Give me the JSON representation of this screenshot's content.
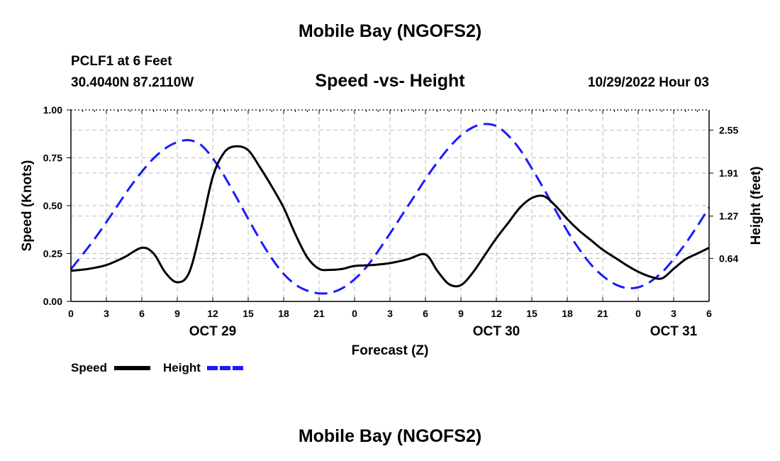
{
  "header": {
    "title": "Mobile Bay (NGOFS2)",
    "station": "PCLF1 at 6 Feet",
    "coordinates": "30.4040N  87.2110W",
    "chart_title": "Speed -vs- Height",
    "datetime": "10/29/2022 Hour 03"
  },
  "footer": {
    "title": "Mobile Bay (NGOFS2)"
  },
  "colors": {
    "speed": "#000000",
    "height": "#1a1aff",
    "grid": "#bdbdbd"
  },
  "chart_data": {
    "type": "line",
    "title": "Speed -vs- Height",
    "xlabel": "Forecast (Z)",
    "ylabel": "Speed (Knots)",
    "y2label": "Height (feet)",
    "xlim": [
      0,
      54
    ],
    "ylim": [
      0,
      1.0
    ],
    "y2lim": [
      0.0,
      2.85
    ],
    "x_ticks": [
      0,
      3,
      6,
      9,
      12,
      15,
      18,
      21,
      24,
      27,
      30,
      33,
      36,
      39,
      42,
      45,
      48,
      51,
      54
    ],
    "x_tick_labels": [
      "0",
      "3",
      "6",
      "9",
      "12",
      "15",
      "18",
      "21",
      "0",
      "3",
      "6",
      "9",
      "12",
      "15",
      "18",
      "21",
      "0",
      "3",
      "6"
    ],
    "date_labels": [
      {
        "x": 12,
        "label": "OCT 29"
      },
      {
        "x": 36,
        "label": "OCT 30"
      },
      {
        "x": 51,
        "label": "OCT 31"
      }
    ],
    "y_ticks": [
      0,
      0.25,
      0.5,
      0.75,
      1.0
    ],
    "y_tick_labels": [
      "0.00",
      "0.25",
      "0.50",
      "0.75",
      "1.00"
    ],
    "y2_ticks": [
      0.64,
      1.27,
      1.91,
      2.55
    ],
    "y2_tick_labels": [
      "0.64",
      "1.27",
      "1.91",
      "2.55"
    ],
    "series": [
      {
        "name": "Speed",
        "axis": "left",
        "style": "solid",
        "x": [
          0,
          1.5,
          3,
          4.5,
          6,
          7,
          8,
          9,
          10,
          11,
          12,
          13,
          14,
          15,
          16,
          17,
          18,
          19,
          20,
          21,
          22,
          23,
          24,
          25.5,
          27,
          28.5,
          30,
          31,
          32,
          33,
          34,
          35,
          36,
          37,
          38,
          39,
          40,
          41,
          42,
          43,
          44,
          45,
          46,
          47,
          48,
          49,
          50,
          51,
          52,
          53,
          54
        ],
        "values": [
          0.16,
          0.17,
          0.19,
          0.23,
          0.28,
          0.25,
          0.15,
          0.1,
          0.15,
          0.38,
          0.65,
          0.78,
          0.81,
          0.79,
          0.7,
          0.6,
          0.49,
          0.35,
          0.23,
          0.17,
          0.165,
          0.17,
          0.185,
          0.19,
          0.2,
          0.22,
          0.245,
          0.16,
          0.09,
          0.085,
          0.15,
          0.24,
          0.33,
          0.41,
          0.49,
          0.54,
          0.55,
          0.5,
          0.43,
          0.37,
          0.32,
          0.27,
          0.23,
          0.19,
          0.155,
          0.13,
          0.12,
          0.17,
          0.22,
          0.25,
          0.28
        ]
      },
      {
        "name": "Height",
        "axis": "right",
        "style": "dashed",
        "x": [
          0,
          1,
          2,
          3,
          4,
          5,
          6,
          7,
          8,
          9,
          10,
          11,
          12,
          13,
          14,
          15,
          16,
          17,
          18,
          19,
          20,
          21,
          22,
          23,
          24,
          25,
          26,
          27,
          28,
          29,
          30,
          31,
          32,
          33,
          34,
          35,
          36,
          37,
          38,
          39,
          40,
          41,
          42,
          43,
          44,
          45,
          46,
          47,
          48,
          49,
          50,
          51,
          52,
          53,
          54
        ],
        "values": [
          0.48,
          0.7,
          0.93,
          1.18,
          1.44,
          1.7,
          1.93,
          2.13,
          2.28,
          2.37,
          2.4,
          2.33,
          2.13,
          1.86,
          1.55,
          1.23,
          0.92,
          0.64,
          0.41,
          0.25,
          0.16,
          0.12,
          0.13,
          0.2,
          0.33,
          0.51,
          0.75,
          1.01,
          1.28,
          1.55,
          1.82,
          2.07,
          2.29,
          2.47,
          2.59,
          2.64,
          2.61,
          2.47,
          2.26,
          1.98,
          1.68,
          1.36,
          1.05,
          0.78,
          0.55,
          0.38,
          0.26,
          0.2,
          0.21,
          0.29,
          0.43,
          0.63,
          0.86,
          1.12,
          1.4
        ]
      }
    ],
    "legend": [
      {
        "label": "Speed",
        "style": "solid"
      },
      {
        "label": "Height",
        "style": "dashed"
      }
    ]
  }
}
